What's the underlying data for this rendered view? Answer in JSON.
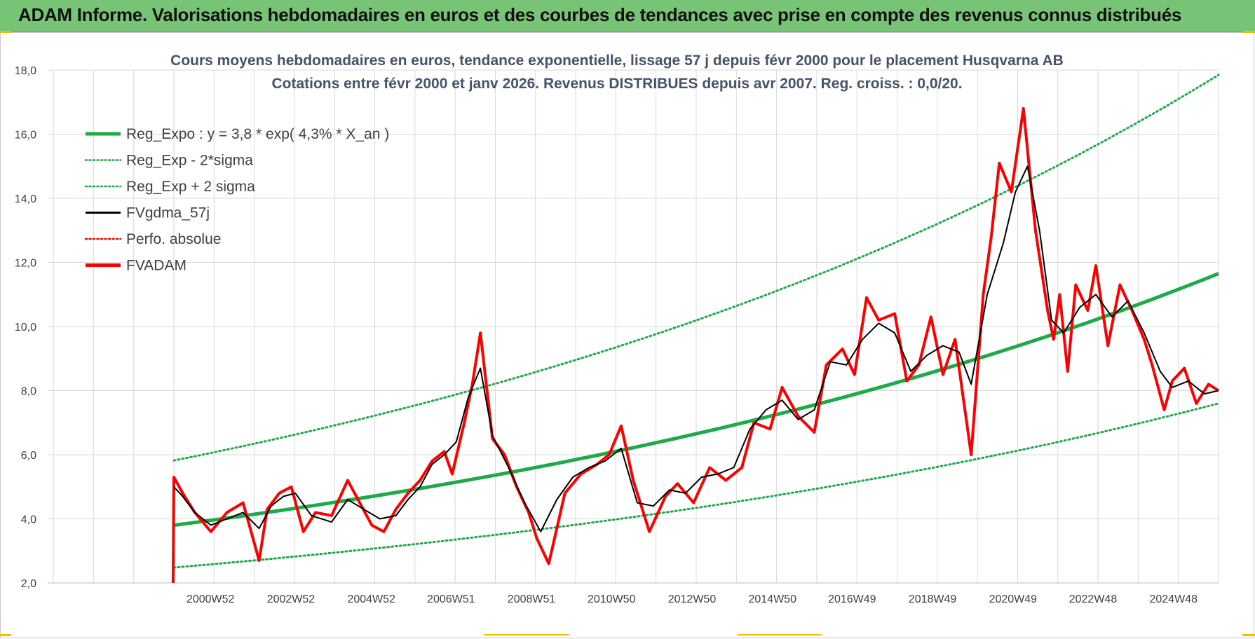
{
  "header": {
    "banner_text": "ADAM Informe. Valorisations hebdomadaires en euros et des courbes de tendances avec prise en compte des revenus connus distribués"
  },
  "colors": {
    "banner_bg": "#77c476",
    "trend": "#1faa4a",
    "band": "#1faa4a",
    "smooth": "#000000",
    "fvadam": "#ff0000",
    "perfo": "#ff0000",
    "title": "#44546a"
  },
  "chart_data": {
    "type": "line",
    "title_lines": [
      "Cours moyens hebdomadaires en euros, tendance exponentielle, lissage 57 j depuis févr 2000 pour le placement Husqvarna AB",
      "Cotations entre févr 2000 et janv 2026. Revenus DISTRIBUES depuis avr 2007. Reg. croiss. : 0,0/20."
    ],
    "ylim": [
      2,
      18
    ],
    "y_ticks": [
      "2,0",
      "4,0",
      "6,0",
      "8,0",
      "10,0",
      "12,0",
      "14,0",
      "16,0",
      "18,0"
    ],
    "x_tick_labels": [
      "2000W52",
      "2002W52",
      "2004W52",
      "2006W51",
      "2008W51",
      "2010W50",
      "2012W50",
      "2014W50",
      "2016W49",
      "2018W49",
      "2020W49",
      "2022W48",
      "2024W48"
    ],
    "x_tick_years": [
      2000.99,
      2002.99,
      2004.99,
      2006.97,
      2008.97,
      2010.96,
      2012.96,
      2014.96,
      2016.94,
      2018.94,
      2020.94,
      2022.93,
      2024.93
    ],
    "x_range": [
      2000.08,
      2026.05
    ],
    "grid": true,
    "legend_position": "left",
    "legend": [
      {
        "label": "Reg_Expo : y = 3,8 * exp( 4,3% *  X_an )",
        "style": "solid-thick",
        "color": "#1faa4a"
      },
      {
        "label": "Reg_Exp - 2*sigma",
        "style": "dotted",
        "color": "#1faa4a"
      },
      {
        "label": "Reg_Exp + 2 sigma",
        "style": "dotted",
        "color": "#1faa4a"
      },
      {
        "label": "FVgdma_57j",
        "style": "solid",
        "color": "#000000"
      },
      {
        "label": "Perfo. absolue",
        "style": "dotted",
        "color": "#ff0000"
      },
      {
        "label": "FVADAM",
        "style": "solid-thick",
        "color": "#ff0000"
      }
    ],
    "series": [
      {
        "name": "Reg_Expo : y = 3,8 * exp( 4,3% *  X_an )",
        "x": [
          2000.08,
          2003.0,
          2006.0,
          2009.0,
          2012.0,
          2015.0,
          2018.0,
          2021.0,
          2024.0,
          2026.05
        ],
        "y": [
          3.8,
          4.29,
          4.86,
          5.52,
          6.26,
          7.11,
          8.07,
          9.16,
          10.4,
          11.65
        ]
      },
      {
        "name": "Reg_Exp - 2*sigma",
        "x": [
          2000.08,
          2003.0,
          2006.0,
          2009.0,
          2012.0,
          2015.0,
          2018.0,
          2021.0,
          2024.0,
          2026.05
        ],
        "y": [
          2.48,
          2.8,
          3.17,
          3.6,
          4.08,
          4.63,
          5.26,
          5.97,
          6.78,
          7.6
        ]
      },
      {
        "name": "Reg_Exp + 2 sigma",
        "x": [
          2000.08,
          2003.0,
          2006.0,
          2009.0,
          2012.0,
          2015.0,
          2018.0,
          2021.0,
          2024.0,
          2026.05
        ],
        "y": [
          5.82,
          6.57,
          7.45,
          8.46,
          9.6,
          10.89,
          12.36,
          14.03,
          15.92,
          17.85
        ]
      },
      {
        "name": "FVADAM",
        "x": [
          2000.06,
          2000.08,
          2000.3,
          2000.6,
          2001.0,
          2001.4,
          2001.8,
          2002.2,
          2002.4,
          2002.7,
          2003.0,
          2003.3,
          2003.6,
          2004.0,
          2004.4,
          2004.7,
          2005.0,
          2005.3,
          2005.6,
          2005.9,
          2006.2,
          2006.5,
          2006.8,
          2007.0,
          2007.3,
          2007.5,
          2007.7,
          2008.0,
          2008.3,
          2008.6,
          2008.9,
          2009.1,
          2009.4,
          2009.8,
          2010.2,
          2010.6,
          2010.9,
          2011.2,
          2011.5,
          2011.9,
          2012.3,
          2012.6,
          2013.0,
          2013.4,
          2013.8,
          2014.2,
          2014.5,
          2014.9,
          2015.2,
          2015.6,
          2016.0,
          2016.3,
          2016.7,
          2017.0,
          2017.3,
          2017.6,
          2018.0,
          2018.3,
          2018.6,
          2018.9,
          2019.2,
          2019.5,
          2019.9,
          2020.2,
          2020.4,
          2020.6,
          2020.9,
          2021.2,
          2021.5,
          2021.8,
          2021.95,
          2022.1,
          2022.3,
          2022.5,
          2022.8,
          2023.0,
          2023.3,
          2023.6,
          2023.9,
          2024.2,
          2024.4,
          2024.7,
          2024.9,
          2025.2,
          2025.5,
          2025.8,
          2026.05
        ],
        "y": [
          2.0,
          5.3,
          4.8,
          4.2,
          3.6,
          4.2,
          4.5,
          2.7,
          4.3,
          4.8,
          5.0,
          3.6,
          4.2,
          4.1,
          5.2,
          4.5,
          3.8,
          3.6,
          4.3,
          4.8,
          5.2,
          5.8,
          6.1,
          5.4,
          7.0,
          8.2,
          9.8,
          6.5,
          6.0,
          5.0,
          4.2,
          3.4,
          2.6,
          4.8,
          5.4,
          5.7,
          6.0,
          6.9,
          5.2,
          3.6,
          4.7,
          5.1,
          4.5,
          5.6,
          5.2,
          5.6,
          7.0,
          6.8,
          8.1,
          7.2,
          6.7,
          8.8,
          9.3,
          8.5,
          10.9,
          10.2,
          10.4,
          8.3,
          8.8,
          10.3,
          8.5,
          9.6,
          6.0,
          11.0,
          12.8,
          15.1,
          14.2,
          16.8,
          13.0,
          10.5,
          9.6,
          11.0,
          8.6,
          11.3,
          10.5,
          11.9,
          9.4,
          11.3,
          10.5,
          9.6,
          8.8,
          7.4,
          8.3,
          8.7,
          7.6,
          8.2,
          8.0
        ]
      },
      {
        "name": "FVgdma_57j",
        "x": [
          2000.08,
          2000.3,
          2000.6,
          2001.0,
          2001.4,
          2001.8,
          2002.2,
          2002.5,
          2002.8,
          2003.1,
          2003.5,
          2004.0,
          2004.4,
          2004.8,
          2005.2,
          2005.6,
          2005.9,
          2006.2,
          2006.5,
          2006.8,
          2007.1,
          2007.4,
          2007.7,
          2008.0,
          2008.4,
          2008.8,
          2009.2,
          2009.6,
          2010.0,
          2010.4,
          2010.8,
          2011.2,
          2011.6,
          2012.0,
          2012.4,
          2012.8,
          2013.2,
          2013.6,
          2014.0,
          2014.4,
          2014.8,
          2015.2,
          2015.6,
          2016.0,
          2016.4,
          2016.8,
          2017.2,
          2017.6,
          2018.0,
          2018.4,
          2018.8,
          2019.2,
          2019.6,
          2019.9,
          2020.3,
          2020.7,
          2021.0,
          2021.3,
          2021.6,
          2021.9,
          2022.2,
          2022.6,
          2023.0,
          2023.4,
          2023.8,
          2024.2,
          2024.6,
          2024.9,
          2025.3,
          2025.7,
          2026.05
        ],
        "y": [
          5.0,
          4.7,
          4.2,
          3.8,
          4.0,
          4.2,
          3.7,
          4.4,
          4.7,
          4.8,
          4.1,
          3.9,
          4.6,
          4.3,
          4.0,
          4.1,
          4.6,
          5.0,
          5.7,
          6.0,
          6.4,
          7.8,
          8.7,
          6.6,
          5.6,
          4.5,
          3.6,
          4.6,
          5.3,
          5.6,
          5.8,
          6.2,
          4.5,
          4.4,
          4.9,
          4.8,
          5.3,
          5.4,
          5.6,
          6.8,
          7.4,
          7.7,
          7.1,
          7.4,
          8.9,
          8.8,
          9.6,
          10.1,
          9.8,
          8.6,
          9.1,
          9.4,
          9.2,
          8.2,
          11.0,
          12.6,
          14.2,
          15.0,
          13.0,
          10.2,
          9.8,
          10.6,
          11.0,
          10.3,
          10.8,
          9.8,
          8.6,
          8.1,
          8.3,
          7.9,
          8.0
        ]
      }
    ]
  }
}
